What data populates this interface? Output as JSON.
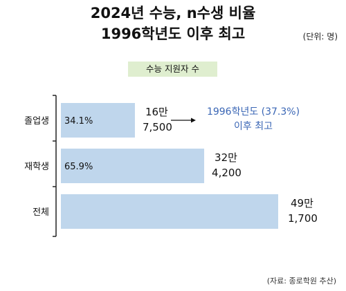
{
  "title_line1": "2024년 수능, n수생 비율",
  "title_line2": "1996학년도 이후 최고",
  "unit": "(단위: 명)",
  "legend": "수능 지원자 수",
  "source": "(자료: 종로학원 추산)",
  "colors": {
    "bar": "#bfd6ec",
    "legend_bg": "#dfeecf",
    "annotation": "#3a66b5",
    "axis": "#222222"
  },
  "chart_data": {
    "type": "bar",
    "orientation": "horizontal",
    "categories": [
      "졸업생",
      "재학생",
      "전체"
    ],
    "values": [
      167500,
      324200,
      491700
    ],
    "value_labels": [
      [
        "16만",
        "7,500"
      ],
      [
        "32만",
        "4,200"
      ],
      [
        "49만",
        "1,700"
      ]
    ],
    "share_labels": [
      "34.1%",
      "65.9%",
      ""
    ],
    "legend": "수능 지원자 수",
    "annotation": {
      "category": "졸업생",
      "lines": [
        "1996학년도 (37.3%)",
        "이후 최고"
      ]
    },
    "xlim": [
      0,
      491700
    ],
    "grid": false
  }
}
